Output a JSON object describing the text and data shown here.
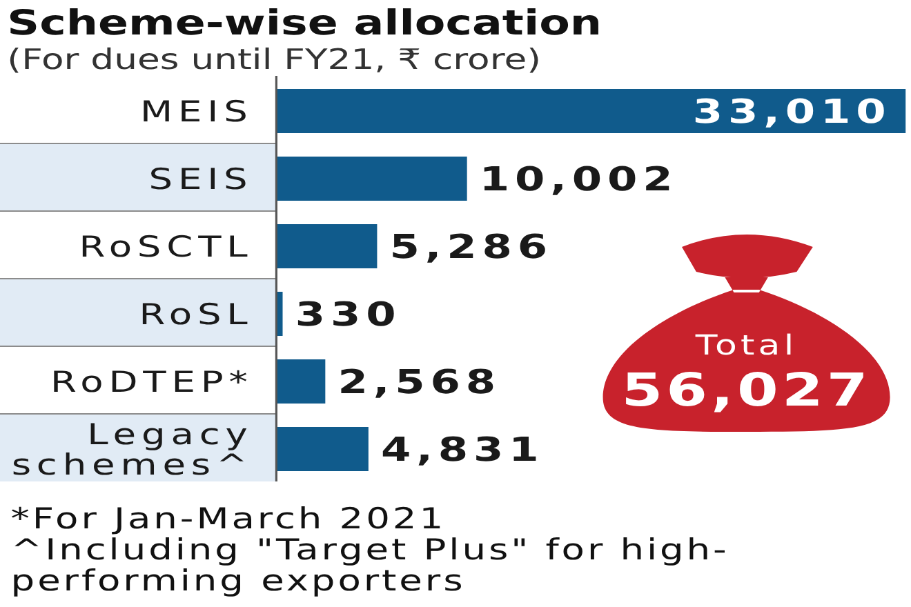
{
  "chart_data": {
    "type": "bar",
    "orientation": "horizontal",
    "title": "Scheme-wise allocation",
    "subtitle": "(For dues until FY21, ₹ crore)",
    "categories": [
      "MEIS",
      "SEIS",
      "RoSCTL",
      "RoSL",
      "RoDTEP*",
      "Legacy schemes^"
    ],
    "values": [
      33010,
      10002,
      5286,
      330,
      2568,
      4831
    ],
    "value_labels": [
      "33,010",
      "10,002",
      "5,286",
      "330",
      "2,568",
      "4,831"
    ],
    "color": "#105b8c",
    "annotations": [
      "Total",
      "56,027",
      "*For Jan-March 2021",
      "^Including \"Target Plus\" for high-performing exporters"
    ]
  }
}
